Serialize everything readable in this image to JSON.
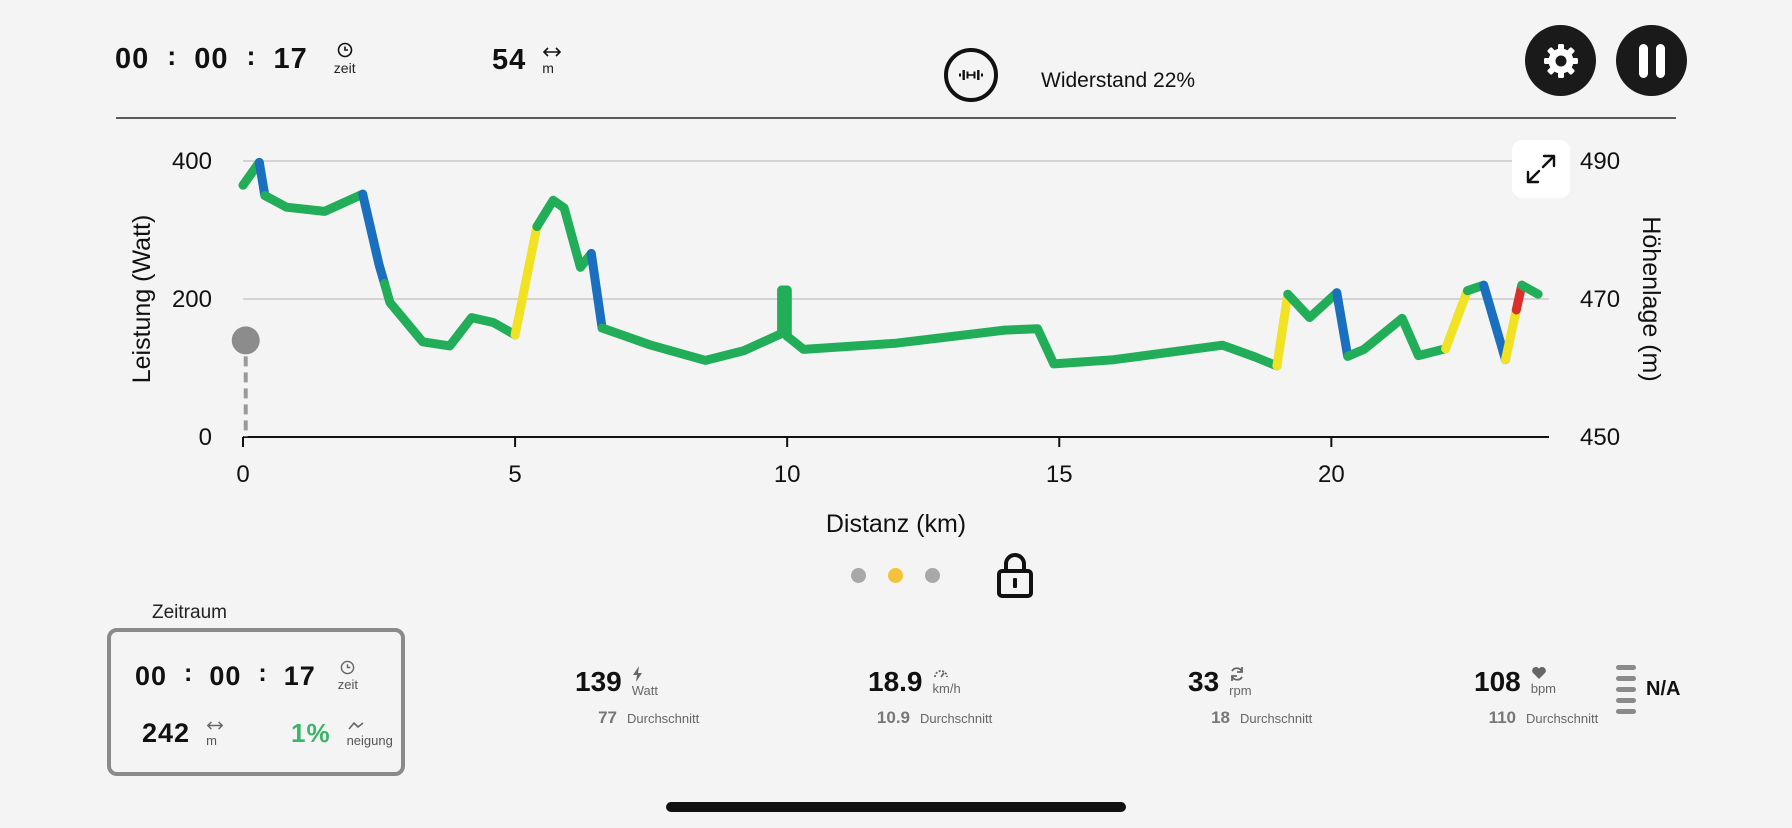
{
  "header": {
    "elapsed": {
      "hh": "00",
      "mm": "00",
      "ss": "17",
      "sep": ":",
      "unit": "zeit"
    },
    "distance": {
      "value": "54",
      "unit": "m"
    },
    "resistance_label": "Widerstand 22%"
  },
  "chart_data": {
    "type": "line",
    "xlabel": "Distanz (km)",
    "ylabel_left": "Leistung (Watt)",
    "ylabel_right": "Höhenlage (m)",
    "xlim": [
      0,
      24
    ],
    "x_ticks": [
      "0",
      "5",
      "10",
      "15",
      "20"
    ],
    "x_tick_values": [
      0,
      5,
      10,
      15,
      20
    ],
    "ylim_left": [
      0,
      400
    ],
    "y_ticks_left": [
      "0",
      "200",
      "400"
    ],
    "y_tick_values_left": [
      0,
      200,
      400
    ],
    "ylim_right": [
      450,
      490
    ],
    "y_ticks_right": [
      "450",
      "470",
      "490"
    ],
    "y_tick_values_right": [
      450,
      470,
      490
    ],
    "current_position_km": 0.05,
    "current_power_w": 140,
    "elevation_profile": [
      [
        0.0,
        486.5
      ],
      [
        0.3,
        489.8
      ],
      [
        0.4,
        485.0
      ],
      [
        0.8,
        483.3
      ],
      [
        1.5,
        482.7
      ],
      [
        2.2,
        485.2
      ],
      [
        2.5,
        475.0
      ],
      [
        2.7,
        469.5
      ],
      [
        3.3,
        463.8
      ],
      [
        3.8,
        463.2
      ],
      [
        4.2,
        467.3
      ],
      [
        4.6,
        466.6
      ],
      [
        5.0,
        464.8
      ],
      [
        5.4,
        480.5
      ],
      [
        5.7,
        484.3
      ],
      [
        5.9,
        483.2
      ],
      [
        6.2,
        474.6
      ],
      [
        6.4,
        476.6
      ],
      [
        6.6,
        465.8
      ],
      [
        7.5,
        463.3
      ],
      [
        8.5,
        461.1
      ],
      [
        9.2,
        462.5
      ],
      [
        9.9,
        465.0
      ],
      [
        9.9,
        471.3
      ],
      [
        10.0,
        471.3
      ],
      [
        10.0,
        464.6
      ],
      [
        10.3,
        462.7
      ],
      [
        12.0,
        463.6
      ],
      [
        14.0,
        465.5
      ],
      [
        14.6,
        465.7
      ],
      [
        14.9,
        460.6
      ],
      [
        16.0,
        461.2
      ],
      [
        18.0,
        463.3
      ],
      [
        18.6,
        461.6
      ],
      [
        19.0,
        460.3
      ],
      [
        19.2,
        470.7
      ],
      [
        19.6,
        467.3
      ],
      [
        20.1,
        470.9
      ],
      [
        20.3,
        461.7
      ],
      [
        20.6,
        462.7
      ],
      [
        21.3,
        467.2
      ],
      [
        21.6,
        461.8
      ],
      [
        22.1,
        462.8
      ],
      [
        22.5,
        471.2
      ],
      [
        22.8,
        472.0
      ],
      [
        23.2,
        461.2
      ],
      [
        23.5,
        472.0
      ],
      [
        23.8,
        470.7
      ]
    ],
    "color_segments": [
      {
        "from_km": 0.0,
        "to_km": 0.3,
        "color": "#22ad58"
      },
      {
        "from_km": 0.3,
        "to_km": 0.4,
        "color": "#1b6fbf"
      },
      {
        "from_km": 0.4,
        "to_km": 2.2,
        "color": "#22ad58"
      },
      {
        "from_km": 2.2,
        "to_km": 2.6,
        "color": "#1b6fbf"
      },
      {
        "from_km": 2.6,
        "to_km": 5.0,
        "color": "#22ad58"
      },
      {
        "from_km": 5.0,
        "to_km": 5.4,
        "color": "#f1e224"
      },
      {
        "from_km": 5.4,
        "to_km": 6.4,
        "color": "#22ad58"
      },
      {
        "from_km": 6.4,
        "to_km": 6.6,
        "color": "#1b6fbf"
      },
      {
        "from_km": 6.6,
        "to_km": 19.0,
        "color": "#22ad58"
      },
      {
        "from_km": 19.0,
        "to_km": 19.2,
        "color": "#f1e224"
      },
      {
        "from_km": 19.2,
        "to_km": 20.1,
        "color": "#22ad58"
      },
      {
        "from_km": 20.1,
        "to_km": 20.3,
        "color": "#1b6fbf"
      },
      {
        "from_km": 20.3,
        "to_km": 22.1,
        "color": "#22ad58"
      },
      {
        "from_km": 22.1,
        "to_km": 22.5,
        "color": "#f1e224"
      },
      {
        "from_km": 22.5,
        "to_km": 22.8,
        "color": "#22ad58"
      },
      {
        "from_km": 22.8,
        "to_km": 23.2,
        "color": "#1b6fbf"
      },
      {
        "from_km": 23.2,
        "to_km": 23.4,
        "color": "#f1e224"
      },
      {
        "from_km": 23.4,
        "to_km": 23.5,
        "color": "#d8302a"
      },
      {
        "from_km": 23.5,
        "to_km": 23.8,
        "color": "#22ad58"
      }
    ]
  },
  "pager": {
    "pages": 3,
    "active_index": 1
  },
  "zeitraum": {
    "title": "Zeitraum",
    "elapsed": {
      "hh": "00",
      "mm": "00",
      "ss": "17",
      "sep": ":",
      "unit": "zeit"
    },
    "distance": {
      "value": "242",
      "unit": "m"
    },
    "incline": {
      "value": "1%",
      "unit": "neigung"
    }
  },
  "metrics": [
    {
      "value": "139",
      "unit": "Watt",
      "icon": "lightning-icon",
      "avg": "77",
      "avg_label": "Durchschnitt"
    },
    {
      "value": "18.9",
      "unit": "km/h",
      "icon": "speedometer-icon",
      "avg": "10.9",
      "avg_label": "Durchschnitt"
    },
    {
      "value": "33",
      "unit": "rpm",
      "icon": "refresh-icon",
      "avg": "18",
      "avg_label": "Durchschnitt"
    },
    {
      "value": "108",
      "unit": "bpm",
      "icon": "heart-icon",
      "avg": "110",
      "avg_label": "Durchschnitt"
    }
  ],
  "hr_zone": {
    "label": "N/A"
  },
  "colors": {
    "accent_yellow": "#f5c33b",
    "incline_green": "#3bb56a",
    "dark": "#1a1a1a"
  }
}
